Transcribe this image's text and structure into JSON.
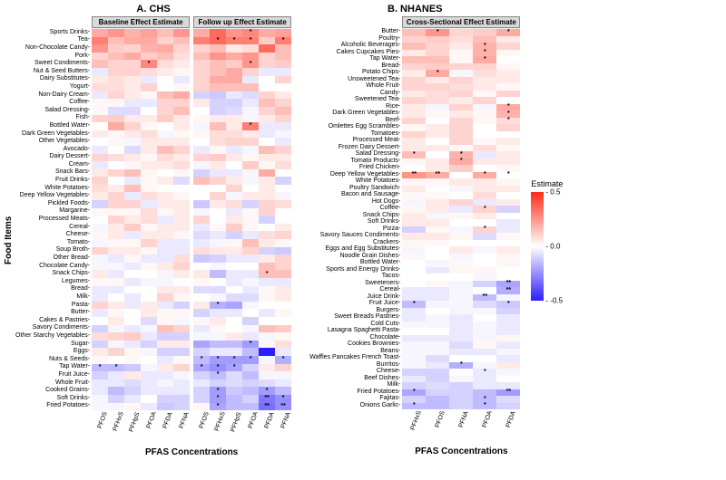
{
  "axis_y_title": "Food Items",
  "axis_x_title": "PFAS Concentrations",
  "legend_title": "Estimate",
  "legend_min": -0.5,
  "legend_max": 0.5,
  "legend_ticks": [
    0.5,
    0.0,
    -0.5
  ],
  "color_neg": "#2e1eff",
  "color_zero": "#ffffff",
  "color_pos": "#ff2a16",
  "panel_gap": "#ffffff",
  "header_bg": "#d9d9d9",
  "panel_a": {
    "title": "A. CHS",
    "subpanels": [
      "Baseline Effect Estimate",
      "Follow up Effect Estimate"
    ],
    "y": [
      "Sports Drinks",
      "Tea",
      "Non-Chocolate Candy",
      "Pork",
      "Sweet Condiments",
      "Nut & Seed Butters",
      "Dairy Substitutes",
      "Yogurt",
      "Non-Dairy Cream",
      "Coffee",
      "Salad Dressing",
      "Fish",
      "Bottled Water",
      "Dark Green Vegetables",
      "Other Vegetables",
      "Avocado",
      "Dairy Dessert",
      "Cream",
      "Snack Bars",
      "Fruit Drinks",
      "White Potatoes",
      "Deep Yellow Vegetables",
      "Pickled Foods",
      "Margarine",
      "Processed Meats",
      "Cereal",
      "Cheese",
      "Tomato",
      "Soup Broth",
      "Other Bread",
      "Chocolate Candy",
      "Snack Chips",
      "Legumes",
      "Bread",
      "Milk",
      "Pasta",
      "Butter",
      "Cakes & Pastries",
      "Savory Condiments",
      "Other Starchy Vegetables",
      "Sugar",
      "Eggs",
      "Nuts & Seeds",
      "Tap Water",
      "Fruit Juice",
      "Whole Fruit",
      "Cooked Grains",
      "Soft Drinks",
      "Fried Potatoes"
    ],
    "x": [
      "PFOS",
      "PFHxS",
      "PFHpS",
      "PFOA",
      "PFDA",
      "PFNA"
    ],
    "data_baseline": [
      [
        0.2,
        0.25,
        0.18,
        0.22,
        0.15,
        0.25
      ],
      [
        0.3,
        0.15,
        0.2,
        0.2,
        0.1,
        0.15
      ],
      [
        0.25,
        0.12,
        0.1,
        0.18,
        0.2,
        0.1
      ],
      [
        0.1,
        0.15,
        0.2,
        0.12,
        0.15,
        0.08
      ],
      [
        0.15,
        0.1,
        0.1,
        0.28,
        0.08,
        0.05
      ],
      [
        -0.05,
        0.1,
        0.1,
        0.08,
        0.05,
        0.02
      ],
      [
        0.05,
        0.08,
        0.05,
        -0.05,
        0.0,
        -0.05
      ],
      [
        0.08,
        0.08,
        0.05,
        0.1,
        0.0,
        0.02
      ],
      [
        -0.05,
        0.1,
        0.05,
        0.02,
        0.15,
        0.2
      ],
      [
        0.02,
        0.02,
        -0.05,
        -0.05,
        0.1,
        0.1
      ],
      [
        0.02,
        -0.08,
        -0.08,
        0.0,
        0.1,
        0.15
      ],
      [
        0.1,
        0.12,
        0.05,
        0.05,
        0.12,
        0.05
      ],
      [
        0.0,
        0.2,
        0.1,
        0.02,
        0.0,
        0.05
      ],
      [
        0.05,
        0.02,
        0.05,
        0.08,
        -0.02,
        0.02
      ],
      [
        0.0,
        0.02,
        -0.02,
        0.05,
        0.05,
        0.05
      ],
      [
        -0.05,
        0.0,
        -0.08,
        0.05,
        0.15,
        0.1
      ],
      [
        0.1,
        0.08,
        0.05,
        0.02,
        0.08,
        0.05
      ],
      [
        -0.05,
        0.0,
        0.02,
        0.05,
        0.05,
        0.08
      ],
      [
        0.05,
        0.1,
        0.15,
        0.02,
        0.0,
        0.02
      ],
      [
        0.1,
        0.0,
        -0.05,
        0.02,
        0.05,
        -0.08
      ],
      [
        0.08,
        0.05,
        0.15,
        0.02,
        0.0,
        0.0
      ],
      [
        0.05,
        0.1,
        -0.05,
        0.08,
        0.05,
        0.02
      ],
      [
        -0.1,
        0.1,
        0.1,
        -0.05,
        0.05,
        0.05
      ],
      [
        0.02,
        0.02,
        0.02,
        0.08,
        0.02,
        0.05
      ],
      [
        0.0,
        0.1,
        0.05,
        0.08,
        -0.05,
        0.05
      ],
      [
        -0.02,
        0.05,
        0.12,
        0.02,
        0.05,
        0.05
      ],
      [
        0.02,
        0.05,
        -0.05,
        0.05,
        0.05,
        0.02
      ],
      [
        -0.02,
        0.02,
        0.02,
        0.1,
        -0.05,
        -0.05
      ],
      [
        0.1,
        0.05,
        0.05,
        0.02,
        -0.05,
        -0.05
      ],
      [
        -0.02,
        -0.05,
        0.02,
        -0.05,
        -0.05,
        0.08
      ],
      [
        -0.02,
        -0.02,
        -0.05,
        0.02,
        0.05,
        0.1
      ],
      [
        0.05,
        -0.05,
        0.0,
        0.0,
        -0.02,
        0.05
      ],
      [
        0.02,
        0.02,
        -0.05,
        -0.02,
        -0.02,
        0.0
      ],
      [
        -0.05,
        -0.05,
        0.0,
        0.0,
        0.05,
        0.05
      ],
      [
        -0.05,
        0.0,
        -0.05,
        0.0,
        0.1,
        0.02
      ],
      [
        0.1,
        0.05,
        -0.05,
        0.05,
        -0.05,
        -0.1
      ],
      [
        -0.05,
        0.02,
        0.0,
        0.05,
        0.02,
        0.02
      ],
      [
        0.0,
        0.05,
        0.0,
        -0.08,
        0.02,
        -0.02
      ],
      [
        -0.1,
        -0.02,
        -0.05,
        -0.02,
        0.15,
        0.1
      ],
      [
        0.08,
        0.1,
        0.12,
        -0.05,
        -0.1,
        -0.1
      ],
      [
        -0.1,
        -0.02,
        -0.05,
        -0.1,
        0.05,
        0.05
      ],
      [
        0.05,
        0.1,
        0.02,
        -0.02,
        -0.1,
        -0.1
      ],
      [
        0.02,
        0.0,
        0.02,
        0.0,
        -0.05,
        0.02
      ],
      [
        -0.15,
        -0.15,
        -0.12,
        -0.02,
        0.05,
        0.1
      ],
      [
        -0.1,
        -0.05,
        0.05,
        -0.05,
        -0.05,
        -0.02
      ],
      [
        -0.05,
        -0.05,
        -0.08,
        -0.05,
        -0.02,
        -0.05
      ],
      [
        -0.05,
        -0.15,
        -0.1,
        -0.05,
        -0.05,
        -0.05
      ],
      [
        -0.02,
        -0.1,
        -0.05,
        0.0,
        -0.1,
        -0.1
      ],
      [
        -0.02,
        -0.02,
        0.02,
        -0.05,
        -0.12,
        -0.1
      ]
    ],
    "sig_baseline": {
      "4,3": "*",
      "43,0": "*",
      "43,1": "*"
    },
    "data_followup": [
      [
        0.2,
        0.35,
        0.25,
        0.28,
        0.2,
        0.22
      ],
      [
        0.3,
        0.35,
        0.3,
        0.3,
        0.12,
        0.3
      ],
      [
        0.1,
        0.15,
        0.05,
        0.08,
        0.35,
        0.15
      ],
      [
        0.15,
        0.25,
        0.2,
        0.25,
        0.1,
        0.15
      ],
      [
        0.1,
        0.15,
        0.12,
        0.25,
        0.1,
        0.12
      ],
      [
        0.1,
        0.15,
        0.2,
        0.1,
        -0.05,
        -0.05
      ],
      [
        0.1,
        0.2,
        0.2,
        -0.05,
        0.0,
        0.1
      ],
      [
        0.1,
        0.15,
        0.15,
        0.15,
        0.0,
        0.0
      ],
      [
        -0.1,
        -0.12,
        -0.05,
        -0.08,
        0.1,
        0.05
      ],
      [
        0.05,
        -0.1,
        -0.1,
        -0.05,
        0.15,
        0.1
      ],
      [
        0.0,
        -0.1,
        -0.08,
        -0.02,
        0.1,
        0.15
      ],
      [
        0.02,
        0.05,
        0.05,
        -0.02,
        0.05,
        0.1
      ],
      [
        -0.02,
        0.15,
        0.05,
        0.3,
        -0.05,
        -0.05
      ],
      [
        0.02,
        0.08,
        0.08,
        0.05,
        -0.05,
        -0.02
      ],
      [
        0.0,
        0.08,
        0.1,
        0.1,
        0.0,
        -0.05
      ],
      [
        -0.05,
        0.02,
        -0.05,
        -0.02,
        0.15,
        0.1
      ],
      [
        0.1,
        0.12,
        0.05,
        0.02,
        0.05,
        0.05
      ],
      [
        -0.02,
        0.05,
        0.0,
        0.12,
        0.02,
        0.08
      ],
      [
        -0.1,
        -0.05,
        -0.05,
        -0.02,
        0.2,
        0.0
      ],
      [
        0.15,
        0.1,
        0.05,
        -0.02,
        0.05,
        -0.1
      ],
      [
        0.0,
        0.0,
        0.1,
        0.0,
        0.05,
        0.0
      ],
      [
        0.0,
        0.1,
        -0.02,
        0.05,
        0.05,
        -0.02
      ],
      [
        -0.12,
        0.05,
        0.08,
        -0.1,
        0.1,
        0.08
      ],
      [
        -0.02,
        0.0,
        -0.05,
        0.02,
        0.1,
        0.0
      ],
      [
        0.1,
        0.0,
        0.05,
        0.02,
        -0.1,
        0.0
      ],
      [
        -0.05,
        0.02,
        0.12,
        0.02,
        0.0,
        0.05
      ],
      [
        -0.08,
        -0.05,
        -0.1,
        -0.05,
        0.08,
        0.1
      ],
      [
        -0.05,
        -0.02,
        0.02,
        0.15,
        0.05,
        0.02
      ],
      [
        0.08,
        0.05,
        0.05,
        0.1,
        -0.1,
        -0.12
      ],
      [
        -0.12,
        -0.1,
        -0.05,
        -0.05,
        0.05,
        0.1
      ],
      [
        0.0,
        -0.02,
        0.0,
        0.0,
        0.15,
        0.1
      ],
      [
        0.05,
        -0.15,
        -0.05,
        -0.05,
        0.15,
        0.15
      ],
      [
        0.02,
        0.0,
        -0.05,
        -0.02,
        -0.05,
        -0.05
      ],
      [
        -0.08,
        -0.08,
        0.0,
        -0.05,
        0.02,
        0.05
      ],
      [
        0.0,
        -0.02,
        -0.08,
        -0.08,
        0.02,
        0.05
      ],
      [
        0.05,
        -0.18,
        -0.2,
        -0.02,
        0.0,
        0.0
      ],
      [
        -0.1,
        -0.05,
        -0.05,
        0.0,
        -0.05,
        0.02
      ],
      [
        0.02,
        0.05,
        0.0,
        -0.1,
        0.0,
        0.0
      ],
      [
        -0.05,
        0.02,
        0.0,
        -0.02,
        0.15,
        0.12
      ],
      [
        -0.02,
        -0.02,
        0.05,
        -0.05,
        -0.02,
        0.02
      ],
      [
        -0.2,
        -0.15,
        -0.15,
        -0.22,
        0.02,
        0.08
      ],
      [
        -0.1,
        -0.05,
        -0.05,
        -0.15,
        -0.55,
        -0.05
      ],
      [
        -0.15,
        -0.22,
        -0.22,
        -0.22,
        -0.02,
        -0.18
      ],
      [
        -0.2,
        -0.25,
        -0.2,
        -0.1,
        0.05,
        0.1
      ],
      [
        -0.1,
        -0.15,
        -0.08,
        -0.15,
        -0.02,
        -0.02
      ],
      [
        -0.05,
        -0.1,
        -0.08,
        -0.1,
        -0.08,
        -0.05
      ],
      [
        -0.1,
        -0.22,
        -0.12,
        -0.15,
        -0.22,
        -0.15
      ],
      [
        -0.1,
        -0.22,
        -0.15,
        -0.1,
        -0.3,
        -0.25
      ],
      [
        0.02,
        -0.2,
        -0.15,
        -0.15,
        -0.32,
        -0.25
      ]
    ],
    "sig_followup": {
      "0,3": "*",
      "1,1": "*",
      "1,2": "*",
      "1,3": "*",
      "1,5": "*",
      "4,3": "*",
      "12,3": "*",
      "31,4": "*",
      "35,1": "*",
      "40,3": "*",
      "42,0": "*",
      "42,1": "*",
      "42,2": "*",
      "42,3": "*",
      "42,5": "*",
      "43,0": "*",
      "43,1": "*",
      "43,2": "*",
      "44,1": "*",
      "46,1": "*",
      "46,4": "*",
      "47,1": "*",
      "47,4": "**",
      "47,5": "*",
      "48,1": "*",
      "48,4": "**",
      "48,5": "**"
    }
  },
  "panel_b": {
    "title": "B. NHANES",
    "subpanel": "Cross-Sectional Effect Estimate",
    "y": [
      "Butter",
      "Poultry",
      "Alcoholic Beverages",
      "Cakes Cupcakes Pies",
      "Tap Water",
      "Bread",
      "Potato Chips",
      "Unsweetened Tea",
      "Whole Fruit",
      "Candy",
      "Sweetened Tea",
      "Rice",
      "Dark Green Vegetables",
      "Beef",
      "Omlettes Egg Scrambles",
      "Tomatoes",
      "Processed Meat",
      "Frozen Dairy Dessert",
      "Salad Dressing",
      "Tomato Products",
      "Fried Chicken",
      "Deep Yellow Vegetables",
      "White Potatoes",
      "Poultry Sandwich",
      "Bacon and Sausage",
      "Hot Dogs",
      "Coffee",
      "Snack Chips",
      "Soft Drinks",
      "Pizza",
      "Savory Sauces Condiments",
      "Crackers",
      "Eggs and Egg Substitutes",
      "Noodle Grain Dishes",
      "Bottled Water",
      "Sports and Energy Drinks",
      "Tacos",
      "Sweeteners",
      "Cereal",
      "Juice Drink",
      "Fruit Juice",
      "Burgers",
      "Sweet Breads Pastries",
      "Cold Cuts",
      "Lasagna Spaghetti Pasta",
      "Chocolate",
      "Cookies Brownies",
      "Beans",
      "Waffles Pancakes French Toast",
      "Burritos",
      "Cheese",
      "Beef Dishes",
      "Milk",
      "Fried Potatoes",
      "Fajitas",
      "Onions Garlic"
    ],
    "x": [
      "PFHxS",
      "PFOS",
      "PFNA",
      "PFOA",
      "PFDA"
    ],
    "data": [
      [
        0.15,
        0.25,
        0.1,
        0.12,
        0.2
      ],
      [
        0.1,
        0.12,
        0.08,
        0.15,
        0.05
      ],
      [
        0.15,
        0.1,
        0.05,
        0.18,
        0.1
      ],
      [
        0.05,
        0.1,
        0.02,
        0.18,
        0.02
      ],
      [
        0.15,
        0.15,
        0.02,
        0.2,
        0.0
      ],
      [
        0.1,
        0.12,
        0.1,
        0.1,
        0.02
      ],
      [
        0.05,
        0.2,
        -0.02,
        0.08,
        0.05
      ],
      [
        0.1,
        0.05,
        0.1,
        0.05,
        0.05
      ],
      [
        0.1,
        0.1,
        0.08,
        0.05,
        0.02
      ],
      [
        0.05,
        0.08,
        0.1,
        0.02,
        0.1
      ],
      [
        0.1,
        0.08,
        0.05,
        0.1,
        0.0
      ],
      [
        0.05,
        -0.02,
        0.1,
        -0.02,
        0.2
      ],
      [
        0.05,
        0.02,
        0.05,
        0.02,
        0.18
      ],
      [
        0.1,
        0.0,
        0.1,
        0.02,
        0.08
      ],
      [
        0.02,
        0.05,
        0.1,
        0.0,
        0.1
      ],
      [
        0.1,
        0.05,
        0.1,
        0.0,
        0.0
      ],
      [
        0.05,
        0.0,
        0.1,
        0.02,
        0.05
      ],
      [
        0.05,
        0.05,
        0.02,
        0.08,
        0.02
      ],
      [
        0.15,
        0.0,
        0.18,
        -0.05,
        0.05
      ],
      [
        0.02,
        0.05,
        0.2,
        0.05,
        0.05
      ],
      [
        0.0,
        0.05,
        0.12,
        0.0,
        0.02
      ],
      [
        0.25,
        0.2,
        0.0,
        0.2,
        0.0
      ],
      [
        0.02,
        0.02,
        0.05,
        0.05,
        0.02
      ],
      [
        0.05,
        0.0,
        -0.02,
        0.05,
        0.05
      ],
      [
        0.02,
        0.02,
        0.0,
        0.08,
        0.0
      ],
      [
        -0.02,
        0.05,
        0.1,
        -0.05,
        0.05
      ],
      [
        0.02,
        0.05,
        -0.05,
        0.1,
        -0.1
      ],
      [
        0.05,
        -0.02,
        0.02,
        0.05,
        0.0
      ],
      [
        0.05,
        0.05,
        0.0,
        0.0,
        -0.05
      ],
      [
        -0.1,
        0.02,
        -0.02,
        0.1,
        -0.05
      ],
      [
        0.05,
        0.05,
        0.02,
        -0.08,
        0.02
      ],
      [
        0.02,
        0.02,
        0.0,
        0.0,
        0.0
      ],
      [
        -0.02,
        0.0,
        0.05,
        -0.02,
        0.05
      ],
      [
        0.02,
        0.0,
        -0.02,
        0.0,
        0.02
      ],
      [
        0.0,
        -0.02,
        0.02,
        0.0,
        0.02
      ],
      [
        0.0,
        -0.05,
        0.02,
        0.02,
        0.0
      ],
      [
        0.0,
        0.0,
        0.0,
        -0.02,
        0.0
      ],
      [
        0.0,
        0.02,
        -0.02,
        -0.1,
        -0.2
      ],
      [
        -0.05,
        -0.05,
        -0.02,
        0.0,
        -0.18
      ],
      [
        -0.05,
        -0.05,
        -0.02,
        -0.15,
        -0.02
      ],
      [
        -0.15,
        -0.02,
        -0.02,
        -0.08,
        -0.12
      ],
      [
        -0.05,
        0.0,
        -0.02,
        -0.02,
        -0.1
      ],
      [
        -0.05,
        -0.02,
        -0.05,
        0.0,
        -0.05
      ],
      [
        -0.02,
        -0.02,
        -0.05,
        -0.02,
        -0.05
      ],
      [
        0.0,
        0.0,
        -0.05,
        -0.02,
        -0.05
      ],
      [
        -0.05,
        -0.05,
        -0.05,
        -0.02,
        0.02
      ],
      [
        -0.02,
        -0.02,
        -0.08,
        0.02,
        -0.05
      ],
      [
        -0.02,
        -0.02,
        -0.05,
        -0.05,
        -0.02
      ],
      [
        -0.02,
        -0.08,
        0.0,
        0.0,
        -0.05
      ],
      [
        -0.02,
        -0.05,
        -0.18,
        -0.02,
        0.05
      ],
      [
        -0.1,
        -0.1,
        0.0,
        -0.05,
        -0.02
      ],
      [
        -0.05,
        -0.1,
        -0.02,
        -0.05,
        0.0
      ],
      [
        -0.1,
        -0.08,
        -0.1,
        -0.05,
        -0.05
      ],
      [
        -0.2,
        -0.1,
        -0.1,
        -0.15,
        -0.22
      ],
      [
        -0.1,
        -0.15,
        -0.1,
        -0.15,
        -0.08
      ],
      [
        -0.15,
        -0.15,
        -0.1,
        -0.15,
        -0.1
      ]
    ],
    "sig": {
      "0,1": "*",
      "0,4": "*",
      "2,3": "*",
      "3,3": "*",
      "4,3": "*",
      "6,1": "*",
      "11,4": "*",
      "12,4": "*",
      "13,4": "*",
      "18,0": "*",
      "18,2": "*",
      "19,2": "*",
      "21,0": "**",
      "21,1": "**",
      "21,3": "*",
      "21,4": "*",
      "26,3": "*",
      "29,3": "*",
      "37,4": "**",
      "38,4": "**",
      "39,3": "**",
      "40,0": "*",
      "40,4": "*",
      "49,2": "*",
      "50,3": "*",
      "53,0": "*",
      "53,4": "**",
      "54,3": "*",
      "55,0": "*",
      "55,3": "*"
    }
  }
}
